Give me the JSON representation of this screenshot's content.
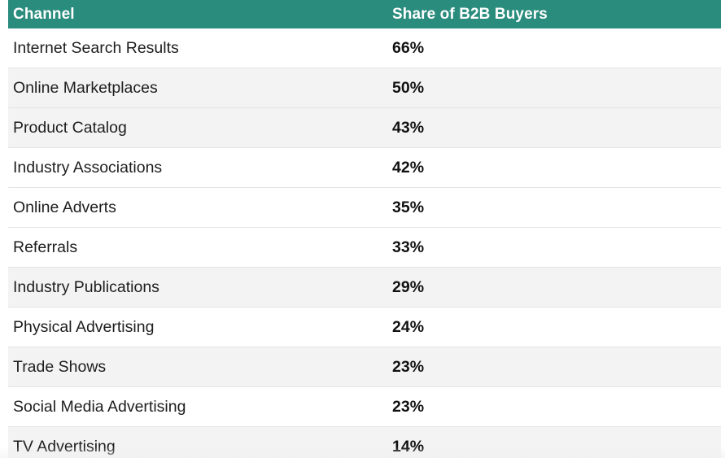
{
  "colors": {
    "header_bg": "#2a8c7d",
    "header_text": "#ffffff",
    "row_alt_bg": "#f3f3f3",
    "row_bg": "#ffffff"
  },
  "table": {
    "headers": {
      "channel": "Channel",
      "share": "Share of B2B Buyers"
    },
    "rows": [
      {
        "channel": "Internet Search Results",
        "share": "66%"
      },
      {
        "channel": "Online Marketplaces",
        "share": "50%"
      },
      {
        "channel": "Product Catalog",
        "share": "43%"
      },
      {
        "channel": "Industry Associations",
        "share": "42%"
      },
      {
        "channel": "Online Adverts",
        "share": "35%"
      },
      {
        "channel": "Referrals",
        "share": "33%"
      },
      {
        "channel": "Industry Publications",
        "share": "29%"
      },
      {
        "channel": "Physical Advertising",
        "share": "24%"
      },
      {
        "channel": "Trade Shows",
        "share": "23%"
      },
      {
        "channel": "Social Media Advertising",
        "share": "23%"
      },
      {
        "channel": "TV Advertising",
        "share": "14%"
      }
    ]
  }
}
